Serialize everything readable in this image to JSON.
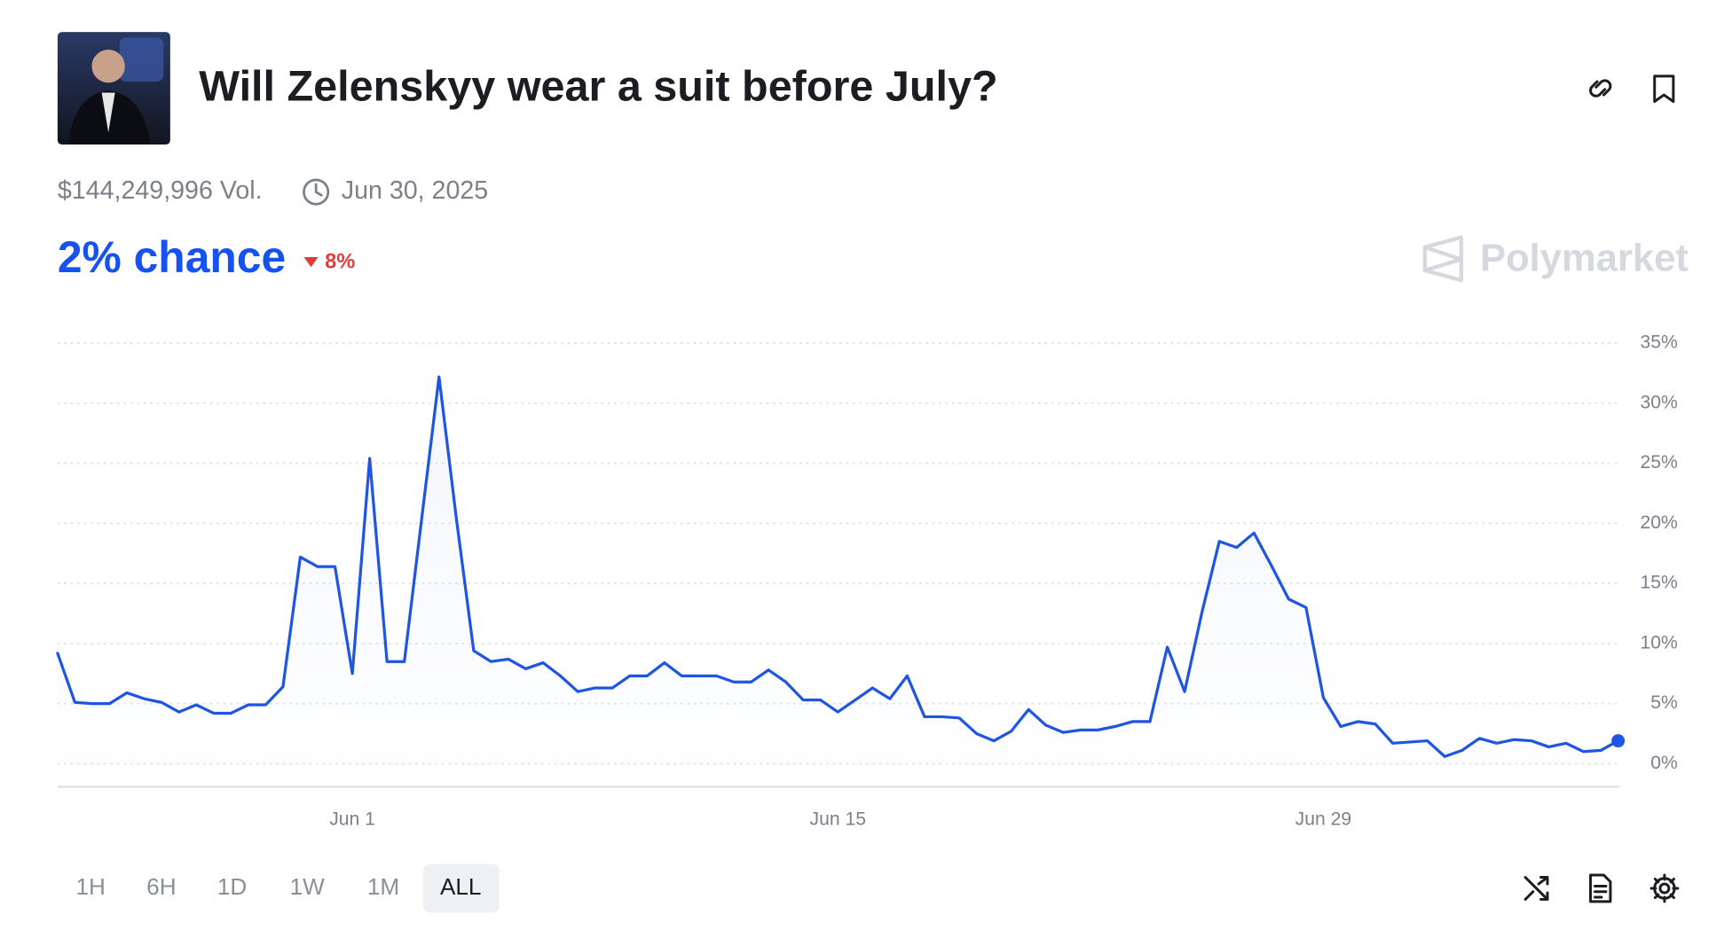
{
  "header": {
    "title": "Will Zelenskyy wear a suit before July?",
    "volume": "$144,249,996 Vol.",
    "end_date": "Jun 30, 2025",
    "chance": "2% chance",
    "change": "8%",
    "brand": "Polymarket"
  },
  "chart_data": {
    "type": "line",
    "color": "#1f55e3",
    "categories": [
      null,
      null,
      null,
      null,
      null,
      null,
      null,
      null,
      null,
      null,
      null,
      null,
      null,
      null,
      null,
      null,
      null,
      "Jun 1",
      null,
      null,
      null,
      null,
      null,
      null,
      null,
      null,
      null,
      null,
      null,
      null,
      null,
      null,
      null,
      null,
      null,
      null,
      null,
      null,
      null,
      null,
      null,
      null,
      null,
      null,
      null,
      "Jun 15",
      null,
      null,
      null,
      null,
      null,
      null,
      null,
      null,
      null,
      null,
      null,
      null,
      null,
      null,
      null,
      null,
      null,
      null,
      null,
      null,
      null,
      null,
      null,
      null,
      null,
      null,
      null,
      "Jun 29",
      null,
      null,
      null,
      null,
      null,
      null,
      null,
      null,
      null,
      null,
      null,
      null,
      null,
      null,
      null,
      null,
      null
    ],
    "values": [
      9.2,
      5.1,
      5,
      5,
      5.9,
      5.4,
      5.1,
      4.3,
      4.9,
      4.2,
      4.2,
      4.9,
      4.9,
      6.4,
      17.2,
      16.4,
      16.4,
      7.5,
      25.4,
      8.5,
      8.5,
      20.4,
      32.2,
      20.4,
      9.4,
      8.5,
      8.7,
      7.9,
      8.4,
      7.3,
      6,
      6.3,
      6.3,
      7.3,
      7.3,
      8.4,
      7.3,
      7.3,
      7.3,
      6.8,
      6.8,
      7.8,
      6.8,
      5.3,
      5.3,
      4.3,
      5.3,
      6.3,
      5.4,
      7.3,
      3.9,
      3.9,
      3.8,
      2.5,
      1.9,
      2.7,
      4.5,
      3.2,
      2.6,
      2.8,
      2.8,
      3.1,
      3.5,
      3.5,
      9.7,
      6,
      12.6,
      18.5,
      18,
      19.2,
      16.5,
      13.7,
      13,
      5.5,
      3.1,
      3.5,
      3.3,
      1.7,
      1.8,
      1.9,
      0.6,
      1.1,
      2.1,
      1.7,
      2,
      1.9,
      1.4,
      1.7,
      1,
      1.1,
      1.9
    ],
    "ylim": [
      -2,
      35
    ],
    "yticks": [
      {
        "value": 0,
        "label": "0%"
      },
      {
        "value": 5,
        "label": "5%"
      },
      {
        "value": 10,
        "label": "10%"
      },
      {
        "value": 15,
        "label": "15%"
      },
      {
        "value": 20,
        "label": "20%"
      },
      {
        "value": 25,
        "label": "25%"
      },
      {
        "value": 30,
        "label": "30%"
      },
      {
        "value": 35,
        "label": "35%"
      }
    ],
    "grid": true
  },
  "controls": {
    "ranges": [
      "1H",
      "6H",
      "1D",
      "1W",
      "1M",
      "ALL"
    ],
    "selected": 5
  }
}
